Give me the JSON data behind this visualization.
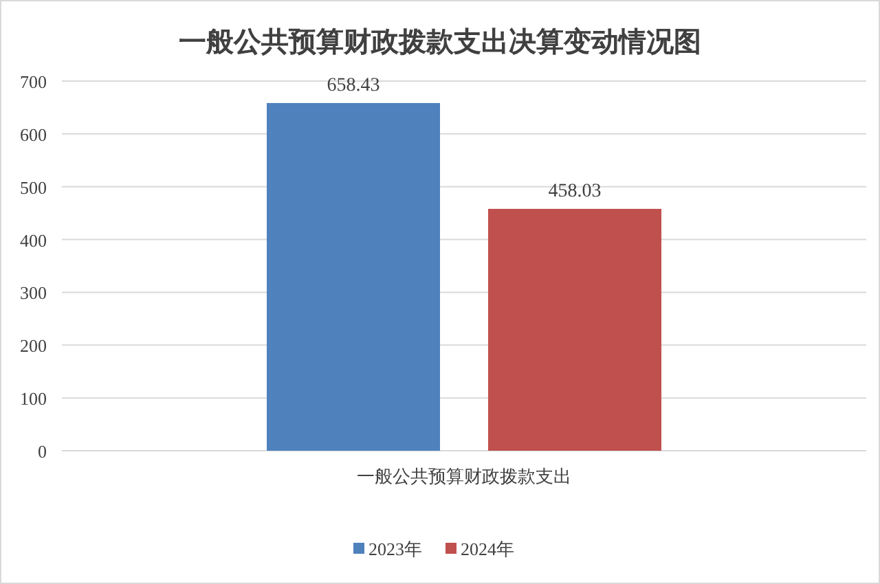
{
  "chart_data": {
    "type": "bar",
    "title": "一般公共预算财政拨款支出决算变动情况图",
    "categories": [
      "一般公共预算财政拨款支出"
    ],
    "series": [
      {
        "name": "2023年",
        "color": "#4f81bd",
        "values": [
          658.43
        ]
      },
      {
        "name": "2024年",
        "color": "#c0504d",
        "values": [
          458.03
        ]
      }
    ],
    "ylim": [
      0,
      700
    ],
    "yticks": [
      0,
      100,
      200,
      300,
      400,
      500,
      600,
      700
    ],
    "grid": "y",
    "data_labels": true,
    "legend": "bottom"
  }
}
